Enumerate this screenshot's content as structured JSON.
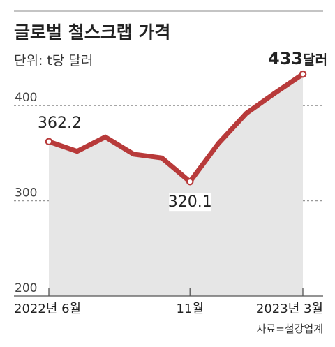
{
  "chart_data": {
    "type": "line",
    "title": "글로벌 철스크랩 가격",
    "unit_label": "단위: t당 달러",
    "source": "자료=철강업계",
    "x": [
      "2022-06",
      "2022-07",
      "2022-08",
      "2022-09",
      "2022-10",
      "2022-11",
      "2022-12",
      "2023-01",
      "2023-02",
      "2023-03"
    ],
    "x_tick_labels": [
      {
        "index": 0,
        "label": "2022년 6월"
      },
      {
        "index": 5,
        "label": "11월"
      },
      {
        "index": 9,
        "label": "2023년 3월"
      }
    ],
    "series": [
      {
        "name": "",
        "values": [
          362.2,
          352,
          367,
          349,
          345,
          320.1,
          360,
          392,
          413,
          433
        ],
        "color": "#b83a3a"
      }
    ],
    "ylim": [
      200,
      433
    ],
    "y_ticks": [
      200,
      300,
      400
    ],
    "annotations": [
      {
        "index": 0,
        "text": "362.2"
      },
      {
        "index": 5,
        "text": "320.1"
      },
      {
        "index": 9,
        "text": "433",
        "suffix": "달러"
      }
    ],
    "grid": "dashed horizontal",
    "fill_color": "#e6e6e6"
  }
}
